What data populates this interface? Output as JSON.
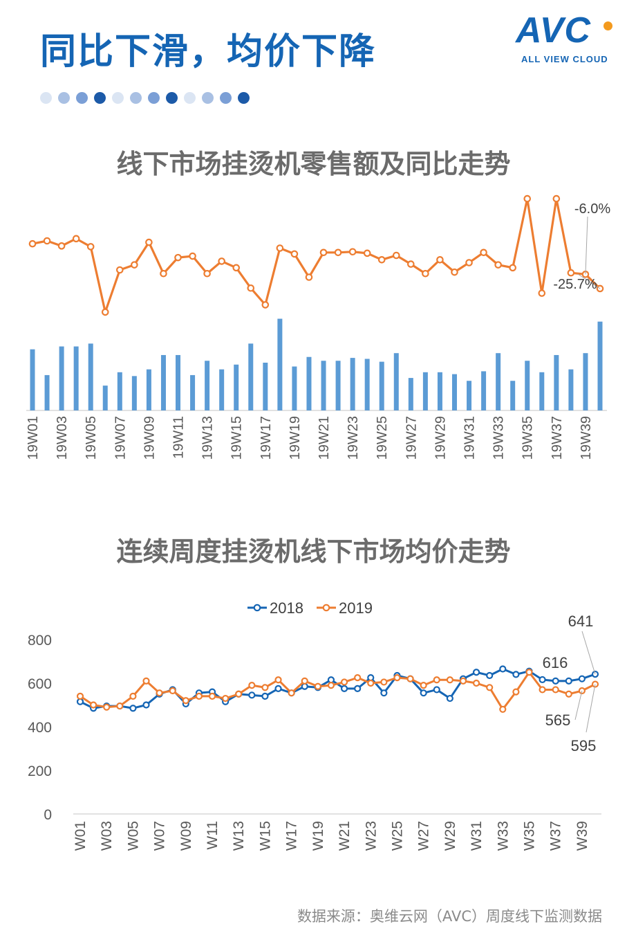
{
  "header": {
    "headline": "同比下滑，均价下降",
    "dots": [
      "#dbe5f3",
      "#a9c0e3",
      "#7b9fd6",
      "#1c5aa8",
      "#dbe5f3",
      "#a9c0e3",
      "#7b9fd6",
      "#1c5aa8",
      "#dbe5f3",
      "#a9c0e3",
      "#7b9fd6",
      "#1c5aa8"
    ]
  },
  "logo": {
    "word": "AVC",
    "sub": "ALL VIEW CLOUD",
    "color": "#1565b4",
    "dot_color": "#f39a1e"
  },
  "source": "数据来源：奥维云网（AVC）周度线下监测数据",
  "chart_data": [
    {
      "type": "line+bar",
      "title": "线下市场挂烫机零售额及同比走势",
      "categories": [
        "19W01",
        "19W02",
        "19W03",
        "19W04",
        "19W05",
        "19W06",
        "19W07",
        "19W08",
        "19W09",
        "19W10",
        "19W11",
        "19W12",
        "19W13",
        "19W14",
        "19W15",
        "19W16",
        "19W17",
        "19W18",
        "19W19",
        "19W20",
        "19W21",
        "19W22",
        "19W23",
        "19W24",
        "19W25",
        "19W26",
        "19W27",
        "19W28",
        "19W29",
        "19W30",
        "19W31",
        "19W32",
        "19W33",
        "19W34",
        "19W35",
        "19W36",
        "19W37",
        "19W38",
        "19W39",
        "19W40"
      ],
      "tick_labels": [
        "19W01",
        "19W03",
        "19W05",
        "19W07",
        "19W09",
        "19W11",
        "19W13",
        "19W15",
        "19W17",
        "19W19",
        "19W21",
        "19W23",
        "19W25",
        "19W27",
        "19W29",
        "19W31",
        "19W33",
        "19W35",
        "19W37",
        "19W39"
      ],
      "bar_values": [
        0.64,
        0.37,
        0.67,
        0.67,
        0.7,
        0.26,
        0.4,
        0.36,
        0.43,
        0.58,
        0.58,
        0.37,
        0.52,
        0.43,
        0.48,
        0.7,
        0.5,
        0.96,
        0.46,
        0.56,
        0.52,
        0.52,
        0.55,
        0.54,
        0.51,
        0.6,
        0.34,
        0.4,
        0.4,
        0.38,
        0.31,
        0.41,
        0.6,
        0.31,
        0.52,
        0.4,
        0.58,
        0.43,
        0.6,
        0.93
      ],
      "line_values": [
        0.36,
        0.4,
        0.33,
        0.43,
        0.32,
        -0.58,
        0.0,
        0.07,
        0.38,
        -0.05,
        0.17,
        0.19,
        -0.05,
        0.12,
        0.03,
        -0.25,
        -0.48,
        0.3,
        0.22,
        -0.1,
        0.24,
        0.24,
        0.25,
        0.23,
        0.14,
        0.2,
        0.08,
        -0.05,
        0.14,
        -0.03,
        0.1,
        0.24,
        0.07,
        0.03,
        0.98,
        -0.32,
        0.98,
        -0.04,
        -0.06,
        -0.257
      ],
      "line_labels": [
        {
          "index": 38,
          "text": "-6.0%"
        },
        {
          "index": 39,
          "text": "-25.7%"
        }
      ],
      "bar_color": "#5b9bd5",
      "line_color": "#ed7d31"
    },
    {
      "type": "line",
      "title": "连续周度挂烫机线下市场均价走势",
      "categories": [
        "W01",
        "W02",
        "W03",
        "W04",
        "W05",
        "W06",
        "W07",
        "W08",
        "W09",
        "W10",
        "W11",
        "W12",
        "W13",
        "W14",
        "W15",
        "W16",
        "W17",
        "W18",
        "W19",
        "W20",
        "W21",
        "W22",
        "W23",
        "W24",
        "W25",
        "W26",
        "W27",
        "W28",
        "W29",
        "W30",
        "W31",
        "W32",
        "W33",
        "W34",
        "W35",
        "W36",
        "W37",
        "W38",
        "W39",
        "W40"
      ],
      "tick_labels": [
        "W01",
        "W03",
        "W05",
        "W07",
        "W09",
        "W11",
        "W13",
        "W15",
        "W17",
        "W19",
        "W21",
        "W23",
        "W25",
        "W27",
        "W29",
        "W31",
        "W33",
        "W35",
        "W37",
        "W39"
      ],
      "y_ticks": [
        "0",
        "200",
        "400",
        "600",
        "800"
      ],
      "ylim": [
        0,
        800
      ],
      "legend_position": "top",
      "series": [
        {
          "name": "2018",
          "color": "#1565b4",
          "values": [
            515,
            485,
            495,
            495,
            485,
            500,
            550,
            570,
            505,
            555,
            560,
            515,
            550,
            545,
            540,
            575,
            555,
            585,
            580,
            615,
            575,
            575,
            625,
            555,
            635,
            620,
            555,
            570,
            530,
            620,
            650,
            635,
            665,
            640,
            655,
            616,
            610,
            610,
            620,
            641
          ]
        },
        {
          "name": "2019",
          "color": "#ed7d31",
          "values": [
            540,
            500,
            490,
            495,
            540,
            610,
            555,
            565,
            520,
            540,
            540,
            530,
            550,
            590,
            580,
            615,
            555,
            610,
            585,
            590,
            605,
            625,
            600,
            605,
            625,
            620,
            590,
            615,
            615,
            610,
            600,
            580,
            480,
            560,
            650,
            570,
            570,
            550,
            565,
            595
          ]
        }
      ],
      "data_labels": [
        {
          "series": "2018",
          "index": 35,
          "text": "616"
        },
        {
          "series": "2018",
          "index": 39,
          "text": "641"
        },
        {
          "series": "2019",
          "index": 38,
          "text": "565"
        },
        {
          "series": "2019",
          "index": 39,
          "text": "595"
        }
      ]
    }
  ]
}
